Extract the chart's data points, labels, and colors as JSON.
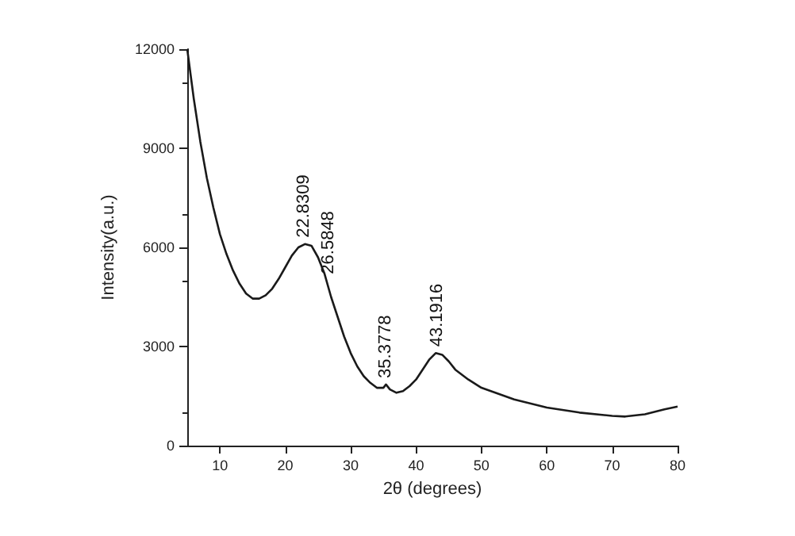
{
  "chart_data": {
    "type": "line",
    "xlabel": "2θ (degrees)",
    "ylabel": "Intensity(a.u.)",
    "x": [
      5,
      6,
      7,
      8,
      9,
      10,
      11,
      12,
      13,
      14,
      15,
      16,
      17,
      18,
      19,
      20,
      21,
      22,
      23,
      24,
      25,
      26,
      27,
      28,
      29,
      30,
      31,
      32,
      33,
      34,
      35,
      35.4,
      36,
      37,
      38,
      39,
      40,
      41,
      42,
      43,
      44,
      45,
      46,
      48,
      50,
      55,
      60,
      65,
      70,
      72,
      75,
      78,
      80
    ],
    "series": [
      {
        "color": "#1a1a1a",
        "values": [
          12000,
          10500,
          9200,
          8100,
          7200,
          6400,
          5800,
          5300,
          4900,
          4600,
          4450,
          4450,
          4550,
          4750,
          5050,
          5400,
          5750,
          6000,
          6100,
          6050,
          5700,
          5200,
          4500,
          3900,
          3300,
          2800,
          2400,
          2100,
          1900,
          1750,
          1750,
          1850,
          1700,
          1600,
          1650,
          1800,
          2000,
          2300,
          2600,
          2800,
          2750,
          2550,
          2300,
          2000,
          1750,
          1400,
          1150,
          1000,
          900,
          880,
          950,
          1100,
          1180
        ]
      }
    ],
    "xlim": [
      5,
      80
    ],
    "xticks": [
      10,
      20,
      30,
      40,
      50,
      60,
      70,
      80
    ],
    "ylim": [
      0,
      12000
    ],
    "yticks": [
      0,
      3000,
      6000,
      9000,
      12000
    ],
    "grid": false,
    "marker": "none",
    "line_style": "solid",
    "annotations": [
      {
        "text": "22.8309",
        "x": 22.8309,
        "y": 6100
      },
      {
        "text": "26.5848",
        "x": 26.5848,
        "y": 5000
      },
      {
        "text": "35.3778",
        "x": 35.3778,
        "y": 1850
      },
      {
        "text": "43.1916",
        "x": 43.1916,
        "y": 2800
      }
    ]
  }
}
